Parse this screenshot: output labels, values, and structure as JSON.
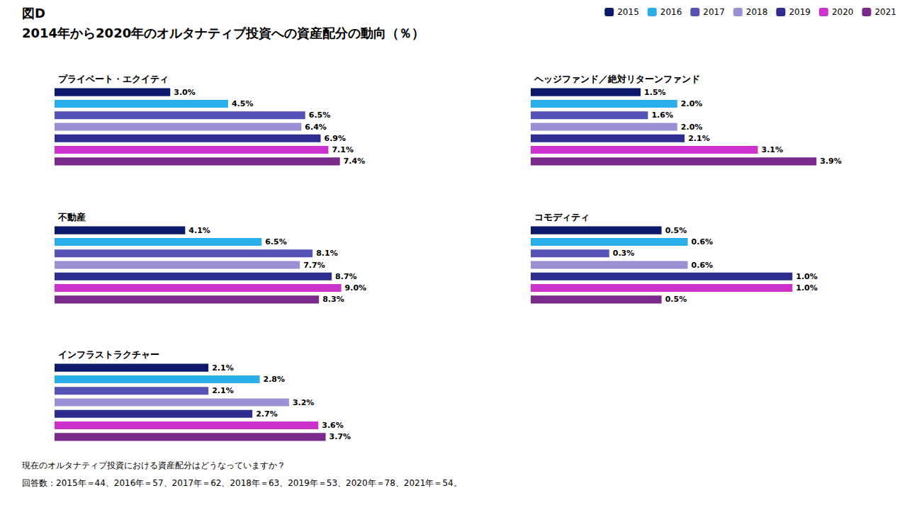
{
  "title": "図D",
  "subtitle": "2014年から2020年のオルタナティブ投資への資産配分の動向（％）",
  "annotations": [
    "現在のオルタナティブ投資における資産配分はどうなっていますか？",
    "回答数：2015年＝44、2016年＝57、2017年＝62、2018年＝63、2019年＝53、2020年＝78、2021年＝54。"
  ],
  "legend": "upper right",
  "chart_data": [
    {
      "type": "bar",
      "orientation": "horizontal",
      "title": "プライベート・エクイティ",
      "categories": [
        "2015",
        "2016",
        "2017",
        "2018",
        "2019",
        "2020",
        "2021"
      ],
      "values": [
        3.0,
        4.5,
        6.5,
        6.4,
        6.9,
        7.1,
        7.4
      ],
      "value_labels": [
        "3.0%",
        "4.5%",
        "6.5%",
        "6.4%",
        "6.9%",
        "7.1%",
        "7.4%"
      ],
      "colors": [
        "#0d1a6b",
        "#29aee8",
        "#5553b8",
        "#9b90d4",
        "#2d2d8f",
        "#cc33cc",
        "#7a2a8a"
      ],
      "xlim": [
        0,
        9.5
      ],
      "data_labels": true,
      "tick_labels": false,
      "grid": false
    },
    {
      "type": "bar",
      "orientation": "horizontal",
      "title": "不動産",
      "categories": [
        "2015",
        "2016",
        "2017",
        "2018",
        "2019",
        "2020",
        "2021"
      ],
      "values": [
        4.1,
        6.5,
        8.1,
        7.7,
        8.7,
        9.0,
        8.3
      ],
      "value_labels": [
        "4.1%",
        "6.5%",
        "8.1%",
        "7.7%",
        "8.7%",
        "9.0%",
        "8.3%"
      ],
      "colors": [
        "#0d1a6b",
        "#29aee8",
        "#5553b8",
        "#9b90d4",
        "#2d2d8f",
        "#cc33cc",
        "#7a2a8a"
      ],
      "xlim": [
        0,
        11.5
      ],
      "data_labels": true,
      "tick_labels": false,
      "grid": false
    },
    {
      "type": "bar",
      "orientation": "horizontal",
      "title": "インフラストラクチャー",
      "categories": [
        "2015",
        "2016",
        "2017",
        "2018",
        "2019",
        "2020",
        "2021"
      ],
      "values": [
        2.1,
        2.8,
        2.1,
        3.2,
        2.7,
        3.6,
        3.7
      ],
      "value_labels": [
        "2.1%",
        "2.8%",
        "2.1%",
        "3.2%",
        "2.7%",
        "3.6%",
        "3.7%"
      ],
      "colors": [
        "#0d1a6b",
        "#29aee8",
        "#5553b8",
        "#9b90d4",
        "#2d2d8f",
        "#cc33cc",
        "#7a2a8a"
      ],
      "xlim": [
        0,
        5.0
      ],
      "data_labels": true,
      "tick_labels": false,
      "grid": false
    },
    {
      "type": "bar",
      "orientation": "horizontal",
      "title": "ヘッジファンド／絶対リターンファンド",
      "categories": [
        "2015",
        "2016",
        "2017",
        "2018",
        "2019",
        "2020",
        "2021"
      ],
      "values": [
        1.5,
        2.0,
        1.6,
        2.0,
        2.1,
        3.1,
        3.9
      ],
      "value_labels": [
        "1.5%",
        "2.0%",
        "1.6%",
        "2.0%",
        "2.1%",
        "3.1%",
        "3.9%"
      ],
      "colors": [
        "#0d1a6b",
        "#29aee8",
        "#5553b8",
        "#9b90d4",
        "#2d2d8f",
        "#cc33cc",
        "#7a2a8a"
      ],
      "xlim": [
        0,
        5.0
      ],
      "data_labels": true,
      "tick_labels": false,
      "grid": false
    },
    {
      "type": "bar",
      "orientation": "horizontal",
      "title": "コモディティ",
      "categories": [
        "2015",
        "2016",
        "2017",
        "2018",
        "2019",
        "2020",
        "2021"
      ],
      "values": [
        0.5,
        0.6,
        0.3,
        0.6,
        1.0,
        1.0,
        0.5
      ],
      "value_labels": [
        "0.5%",
        "0.6%",
        "0.3%",
        "0.6%",
        "1.0%",
        "1.0%",
        "0.5%"
      ],
      "colors": [
        "#0d1a6b",
        "#29aee8",
        "#5553b8",
        "#9b90d4",
        "#2d2d8f",
        "#cc33cc",
        "#7a2a8a"
      ],
      "xlim": [
        0,
        1.4
      ],
      "data_labels": true,
      "tick_labels": false,
      "grid": false
    }
  ]
}
